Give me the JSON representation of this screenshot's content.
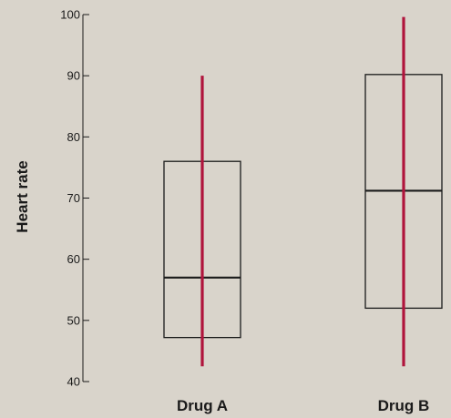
{
  "chart_data": {
    "type": "box",
    "ylabel": "Heart rate",
    "xlabel": "",
    "ylim": [
      40,
      100
    ],
    "yticks": [
      40,
      50,
      60,
      70,
      80,
      90,
      100
    ],
    "grid": false,
    "categories": [
      "Drug A",
      "Drug B"
    ],
    "boxes": [
      {
        "category": "Drug A",
        "min": 42.5,
        "q1": 47.2,
        "median": 57.0,
        "q3": 76.0,
        "max": 90.0
      },
      {
        "category": "Drug B",
        "min": 42.5,
        "q1": 52.0,
        "median": 71.2,
        "q3": 90.2,
        "max": 99.6
      }
    ],
    "colors": {
      "background": "#d9d4cb",
      "whisker": "#b0143c",
      "box_edge": "#1a1a1a",
      "median": "#1a1a1a",
      "axis": "#1a1a1a"
    }
  }
}
